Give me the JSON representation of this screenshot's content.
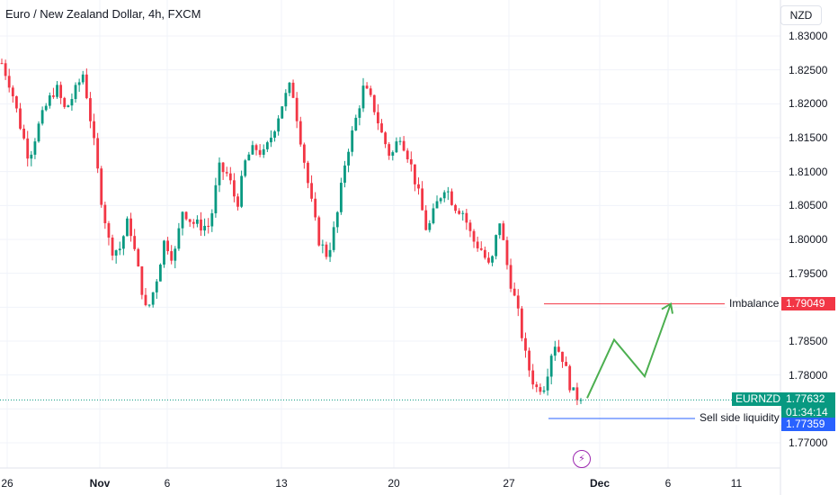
{
  "header": {
    "title": "Euro / New Zealand Dollar, 4h, FXCM",
    "currency_button": "NZD"
  },
  "colors": {
    "up": "#089981",
    "down": "#f23645",
    "imbalance_line": "#f23645",
    "liquidity_line": "#2962ff",
    "projection": "#4caf50",
    "grid": "#f0f3fa"
  },
  "chart_data": {
    "type": "candlestick",
    "symbol": "EURNZD",
    "timeframe": "4h",
    "y_ticks": [
      "1.83000",
      "1.82500",
      "1.82000",
      "1.81500",
      "1.81000",
      "1.80500",
      "1.80000",
      "1.79500",
      "1.79000",
      "1.78500",
      "1.78000",
      "1.77500",
      "1.77000"
    ],
    "ylim": [
      1.7675,
      1.836
    ],
    "x_ticks": [
      {
        "label": "26",
        "bold": false
      },
      {
        "label": "Nov",
        "bold": true
      },
      {
        "label": "6",
        "bold": false
      },
      {
        "label": "13",
        "bold": false
      },
      {
        "label": "20",
        "bold": false
      },
      {
        "label": "27",
        "bold": false
      },
      {
        "label": "Dec",
        "bold": true
      },
      {
        "label": "6",
        "bold": false
      },
      {
        "label": "11",
        "bold": false
      }
    ],
    "price_path": [
      1.826,
      1.8225,
      1.817,
      1.812,
      1.8165,
      1.82,
      1.8225,
      1.819,
      1.8215,
      1.8245,
      1.816,
      1.806,
      1.7985,
      1.7985,
      1.803,
      1.796,
      1.789,
      1.7935,
      1.8,
      1.797,
      1.8045,
      1.8025,
      1.802,
      1.802,
      1.8105,
      1.8095,
      1.805,
      1.812,
      1.8135,
      1.8125,
      1.816,
      1.82,
      1.823,
      1.815,
      1.807,
      1.8,
      1.7975,
      1.803,
      1.812,
      1.817,
      1.8225,
      1.82,
      1.8155,
      1.812,
      1.8155,
      1.812,
      1.807,
      1.801,
      1.805,
      1.808,
      1.805,
      1.804,
      1.8,
      1.7985,
      1.7955,
      1.803,
      1.795,
      1.7895,
      1.782,
      1.778,
      1.7785,
      1.785,
      1.7825,
      1.7775,
      1.7763
    ],
    "close": 1.77632,
    "annotations": {
      "imbalance": {
        "label": "Imbalance",
        "price": 1.79049,
        "price_label": "1.79049"
      },
      "sell_side_liquidity": {
        "label": "Sell side liquidity",
        "price": 1.77359,
        "price_label": "1.77359"
      },
      "current": {
        "symbol_label": "EURNZD",
        "price_label": "1.77632",
        "countdown": "01:34:14"
      }
    },
    "projection_path": [
      1.7766,
      1.7852,
      1.7798,
      1.7905
    ]
  }
}
